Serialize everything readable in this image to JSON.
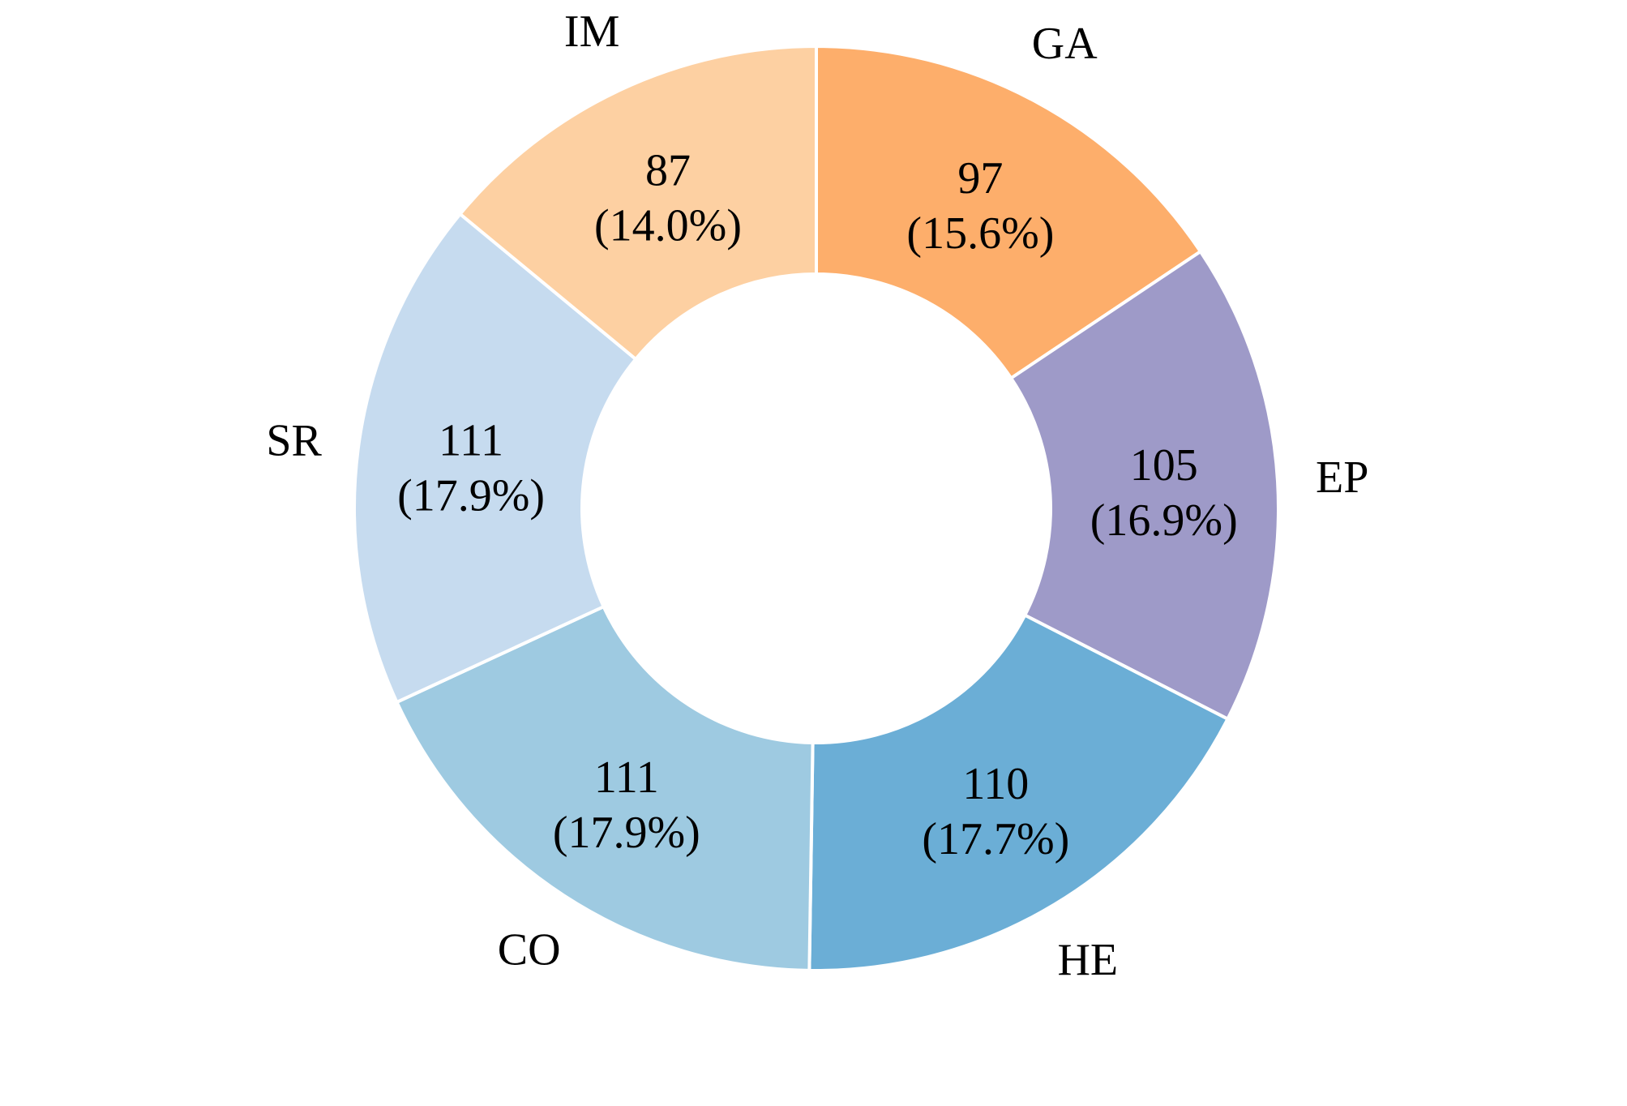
{
  "chart_data": {
    "type": "pie",
    "donut": true,
    "start": "top",
    "direction": "clockwise",
    "slices": [
      {
        "label": "GA",
        "value": 97,
        "percent": "15.6%",
        "color": "#fdae6b"
      },
      {
        "label": "EP",
        "value": 105,
        "percent": "16.9%",
        "color": "#9e9ac8"
      },
      {
        "label": "HE",
        "value": 110,
        "percent": "17.7%",
        "color": "#6baed6"
      },
      {
        "label": "CO",
        "value": 111,
        "percent": "17.9%",
        "color": "#9ecae1"
      },
      {
        "label": "SR",
        "value": 111,
        "percent": "17.9%",
        "color": "#c6dbef"
      },
      {
        "label": "IM",
        "value": 87,
        "percent": "14.0%",
        "color": "#fdd0a2"
      }
    ],
    "legend": "none"
  }
}
